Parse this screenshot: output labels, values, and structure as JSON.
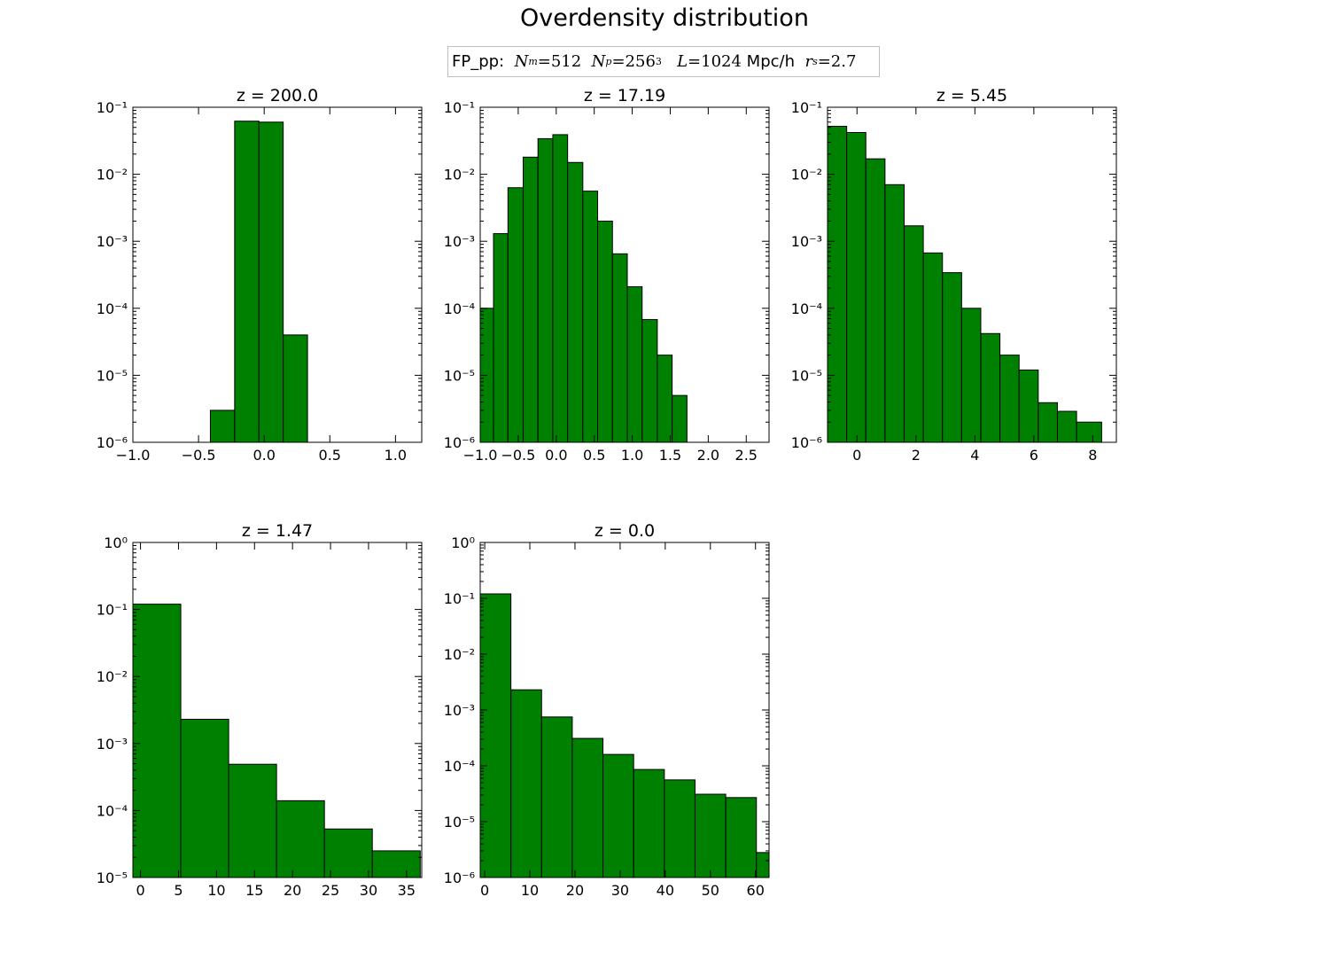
{
  "figure": {
    "title": "Overdensity distribution",
    "legend": {
      "prefix": "FP_pp:",
      "nm_symbol": "N",
      "nm_sub": "m",
      "nm_value": "=512",
      "np_symbol": "N",
      "np_sub": "p",
      "np_value": "=256",
      "np_exp": "3",
      "l_text": "L",
      "l_value": "=1024",
      "l_unit": "Mpc/h",
      "rs_symbol": "r",
      "rs_sub": "s",
      "rs_value": "=2.7"
    },
    "bar_color": "#008000"
  },
  "chart_data": [
    {
      "type": "bar",
      "title": "z = 200.0",
      "yscale": "log",
      "xlim": [
        -1.0,
        1.2
      ],
      "ylim_exp": [
        -6,
        -1
      ],
      "xticks": [
        -1.0,
        -0.5,
        0.0,
        0.5,
        1.0
      ],
      "xtick_labels": [
        "−1.0",
        "−0.5",
        "0.0",
        "0.5",
        "1.0"
      ],
      "bin_edges": [
        -0.58,
        -0.41,
        -0.225,
        -0.04,
        0.145,
        0.33
      ],
      "values": [
        0,
        3e-06,
        0.062,
        0.06,
        4e-05
      ]
    },
    {
      "type": "bar",
      "title": "z = 17.19",
      "yscale": "log",
      "xlim": [
        -1.0,
        2.8
      ],
      "ylim_exp": [
        -6,
        -1
      ],
      "xticks": [
        -1.0,
        -0.5,
        0.0,
        0.5,
        1.0,
        1.5,
        2.0,
        2.5
      ],
      "xtick_labels": [
        "−1.0",
        "−0.5",
        "0.0",
        "0.5",
        "1.0",
        "1.5",
        "2.0",
        "2.5"
      ],
      "bin_edges": [
        -1.0,
        -0.825,
        -0.635,
        -0.435,
        -0.24,
        -0.045,
        0.15,
        0.35,
        0.545,
        0.74,
        0.935,
        1.13,
        1.33,
        1.525,
        1.72
      ],
      "values": [
        0.0001,
        0.0013,
        0.0063,
        0.018,
        0.034,
        0.039,
        0.015,
        0.0056,
        0.002,
        0.00065,
        0.00021,
        6.8e-05,
        2e-05,
        5e-06
      ]
    },
    {
      "type": "bar",
      "title": "z = 5.45",
      "yscale": "log",
      "xlim": [
        -1.0,
        8.8
      ],
      "ylim_exp": [
        -6,
        -1
      ],
      "xticks": [
        0,
        2,
        4,
        6,
        8
      ],
      "xtick_labels": [
        "0",
        "2",
        "4",
        "6",
        "8"
      ],
      "bin_edges": [
        -1.0,
        -0.35,
        0.3,
        0.95,
        1.6,
        2.25,
        2.9,
        3.55,
        4.2,
        4.85,
        5.5,
        6.15,
        6.8,
        7.45,
        8.3
      ],
      "values": [
        0.052,
        0.042,
        0.017,
        0.007,
        0.0017,
        0.00067,
        0.00034,
        0.0001,
        4.2e-05,
        2e-05,
        1.2e-05,
        3.9e-06,
        2.9e-06,
        2e-06
      ]
    },
    {
      "type": "bar",
      "title": "z = 1.47",
      "yscale": "log",
      "xlim": [
        -1.0,
        37.0
      ],
      "ylim_exp": [
        -5,
        0
      ],
      "xticks": [
        0,
        5,
        10,
        15,
        20,
        25,
        30,
        35
      ],
      "xtick_labels": [
        "0",
        "5",
        "10",
        "15",
        "20",
        "25",
        "30",
        "35"
      ],
      "bin_edges": [
        -1.0,
        5.3,
        11.6,
        17.9,
        24.2,
        30.5,
        36.8
      ],
      "values": [
        0.12,
        0.0023,
        0.00049,
        0.00014,
        5.3e-05,
        2.5e-05
      ]
    },
    {
      "type": "bar",
      "title": "z = 0.0",
      "yscale": "log",
      "xlim": [
        -1.0,
        63.0
      ],
      "ylim_exp": [
        -6,
        0
      ],
      "xticks": [
        0,
        10,
        20,
        30,
        40,
        50,
        60
      ],
      "xtick_labels": [
        "0",
        "10",
        "20",
        "30",
        "40",
        "50",
        "60"
      ],
      "bin_edges": [
        -1.0,
        5.8,
        12.6,
        19.4,
        26.2,
        33.0,
        39.8,
        46.6,
        53.4,
        60.2,
        67.0
      ],
      "values": [
        0.12,
        0.0023,
        0.00075,
        0.00031,
        0.00016,
        8.6e-05,
        5.6e-05,
        3.1e-05,
        2.7e-05,
        2.8e-06
      ]
    }
  ]
}
